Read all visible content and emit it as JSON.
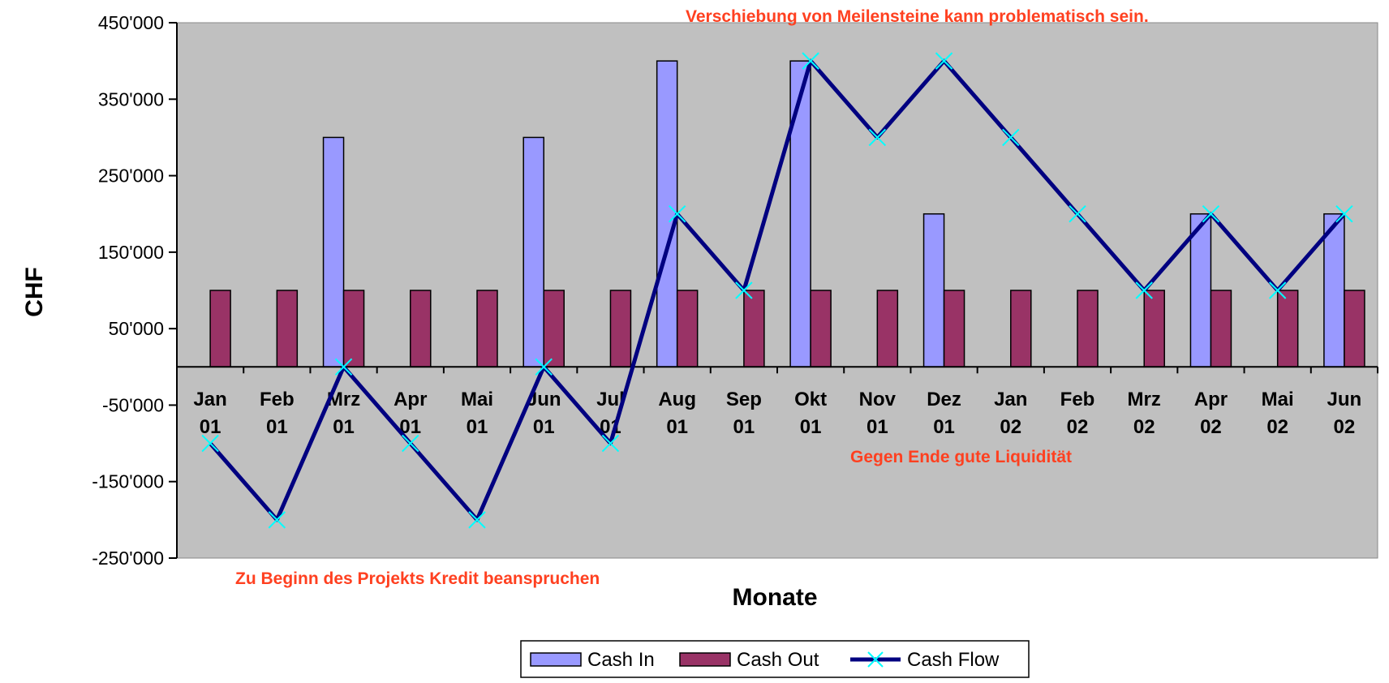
{
  "chart_data": {
    "type": "bar",
    "title": "",
    "xlabel": "Monate",
    "ylabel": "CHF",
    "categories": [
      [
        "Jan",
        "01"
      ],
      [
        "Feb",
        "01"
      ],
      [
        "Mrz",
        "01"
      ],
      [
        "Apr",
        "01"
      ],
      [
        "Mai",
        "01"
      ],
      [
        "Jun",
        "01"
      ],
      [
        "Jul",
        "01"
      ],
      [
        "Aug",
        "01"
      ],
      [
        "Sep",
        "01"
      ],
      [
        "Okt",
        "01"
      ],
      [
        "Nov",
        "01"
      ],
      [
        "Dez",
        "01"
      ],
      [
        "Jan",
        "02"
      ],
      [
        "Feb",
        "02"
      ],
      [
        "Mrz",
        "02"
      ],
      [
        "Apr",
        "02"
      ],
      [
        "Mai",
        "02"
      ],
      [
        "Jun",
        "02"
      ]
    ],
    "series": [
      {
        "name": "Cash In",
        "type": "bar",
        "color": "#9999ff",
        "values": [
          0,
          0,
          300000,
          0,
          0,
          300000,
          0,
          400000,
          0,
          400000,
          0,
          200000,
          0,
          0,
          0,
          200000,
          0,
          200000
        ]
      },
      {
        "name": "Cash Out",
        "type": "bar",
        "color": "#993366",
        "values": [
          100000,
          100000,
          100000,
          100000,
          100000,
          100000,
          100000,
          100000,
          100000,
          100000,
          100000,
          100000,
          100000,
          100000,
          100000,
          100000,
          100000,
          100000
        ]
      },
      {
        "name": "Cash Flow",
        "type": "line",
        "color": "#000080",
        "marker_color": "#00ffff",
        "values": [
          -100000,
          -200000,
          0,
          -100000,
          -200000,
          0,
          -100000,
          200000,
          100000,
          400000,
          300000,
          400000,
          300000,
          200000,
          100000,
          200000,
          100000,
          200000
        ]
      }
    ],
    "ylim": [
      -250000,
      450000
    ],
    "yticks": [
      450000,
      350000,
      250000,
      150000,
      50000,
      -50000,
      -150000,
      -250000
    ],
    "ytick_labels": [
      "450'000",
      "350'000",
      "250'000",
      "150'000",
      "50'000",
      "-50'000",
      "-150'000",
      "-250'000"
    ],
    "plot_background": "#c0c0c0",
    "grid": false,
    "legend_position": "bottom",
    "annotations": [
      "Verschiebung von Meilensteine kann problematisch sein.",
      "Gegen Ende gute Liquidität",
      "Zu Beginn des Projekts Kredit beanspruchen"
    ]
  }
}
